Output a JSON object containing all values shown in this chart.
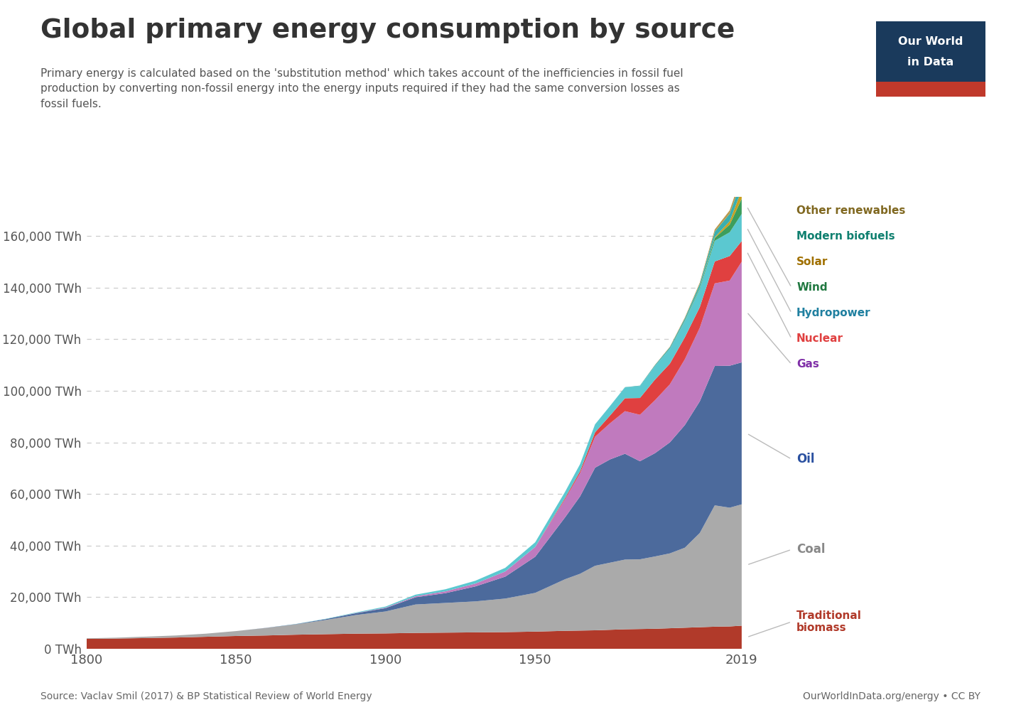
{
  "title": "Global primary energy consumption by source",
  "subtitle": "Primary energy is calculated based on the 'substitution method' which takes account of the inefficiencies in fossil fuel\nproduction by converting non-fossil energy into the energy inputs required if they had the same conversion losses as\nfossil fuels.",
  "source_left": "Source: Vaclav Smil (2017) & BP Statistical Review of World Energy",
  "source_right": "OurWorldInData.org/energy • CC BY",
  "years": [
    1800,
    1810,
    1820,
    1830,
    1840,
    1850,
    1860,
    1870,
    1880,
    1890,
    1900,
    1910,
    1920,
    1930,
    1940,
    1950,
    1960,
    1965,
    1970,
    1975,
    1980,
    1985,
    1990,
    1995,
    2000,
    2005,
    2010,
    2015,
    2019
  ],
  "series": {
    "Traditional biomass": [
      3900,
      4000,
      4200,
      4400,
      4700,
      5000,
      5200,
      5500,
      5700,
      5900,
      6000,
      6200,
      6300,
      6400,
      6500,
      6700,
      7000,
      7100,
      7200,
      7400,
      7600,
      7700,
      7800,
      8000,
      8200,
      8400,
      8600,
      8700,
      9000
    ],
    "Coal": [
      200,
      350,
      550,
      800,
      1200,
      1900,
      2900,
      4000,
      5500,
      7200,
      8500,
      11000,
      11500,
      12000,
      13000,
      15000,
      20000,
      22000,
      25000,
      26000,
      27000,
      27000,
      28000,
      29000,
      31000,
      36500,
      47000,
      46000,
      47000
    ],
    "Oil": [
      0,
      0,
      0,
      0,
      0,
      0,
      50,
      100,
      350,
      700,
      1300,
      2800,
      3800,
      5800,
      8500,
      14000,
      24000,
      30000,
      38000,
      40000,
      41000,
      38000,
      40000,
      43000,
      47500,
      51000,
      54000,
      55000,
      55000
    ],
    "Gas": [
      0,
      0,
      0,
      0,
      0,
      0,
      0,
      0,
      0,
      100,
      200,
      400,
      700,
      1100,
      2000,
      3800,
      7000,
      9000,
      12000,
      14000,
      16500,
      18000,
      20500,
      22500,
      25500,
      28500,
      32000,
      33000,
      39000
    ],
    "Nuclear": [
      0,
      0,
      0,
      0,
      0,
      0,
      0,
      0,
      0,
      0,
      0,
      0,
      0,
      0,
      0,
      0,
      500,
      800,
      1700,
      3000,
      5000,
      6500,
      8000,
      8000,
      8500,
      8000,
      8500,
      9500,
      8000
    ],
    "Hydropower": [
      0,
      0,
      0,
      0,
      0,
      0,
      0,
      50,
      100,
      200,
      400,
      600,
      800,
      1100,
      1400,
      1800,
      2400,
      2700,
      3100,
      3700,
      4200,
      4600,
      5200,
      5700,
      6200,
      7000,
      8000,
      9200,
      10500
    ],
    "Wind": [
      0,
      0,
      0,
      0,
      0,
      0,
      0,
      0,
      0,
      0,
      0,
      0,
      0,
      0,
      0,
      0,
      0,
      0,
      0,
      0,
      0,
      0,
      0,
      50,
      150,
      450,
      1100,
      3000,
      5900
    ],
    "Solar": [
      0,
      0,
      0,
      0,
      0,
      0,
      0,
      0,
      0,
      0,
      0,
      0,
      0,
      0,
      0,
      0,
      0,
      0,
      0,
      0,
      0,
      0,
      0,
      0,
      50,
      100,
      300,
      1300,
      3400
    ],
    "Modern biofuels": [
      0,
      0,
      0,
      0,
      0,
      0,
      0,
      0,
      0,
      0,
      0,
      0,
      0,
      0,
      0,
      0,
      0,
      0,
      0,
      0,
      100,
      200,
      400,
      600,
      900,
      1400,
      2100,
      2900,
      3700
    ],
    "Other renewables": [
      0,
      0,
      0,
      0,
      0,
      0,
      0,
      0,
      0,
      0,
      0,
      0,
      0,
      0,
      0,
      0,
      0,
      0,
      0,
      0,
      0,
      0,
      100,
      200,
      350,
      550,
      900,
      1300,
      2100
    ]
  },
  "colors": {
    "Traditional biomass": "#b13a2a",
    "Coal": "#aaaaaa",
    "Oil": "#4c6a9c",
    "Gas": "#c07abe",
    "Nuclear": "#e04040",
    "Hydropower": "#5bc8d0",
    "Wind": "#3c9e5c",
    "Solar": "#c8a020",
    "Modern biofuels": "#3aafaf",
    "Other renewables": "#b89a50"
  },
  "label_colors": {
    "Traditional biomass": "#b13a2a",
    "Coal": "#888888",
    "Oil": "#2a50a0",
    "Gas": "#8030a8",
    "Nuclear": "#e04040",
    "Hydropower": "#2080a0",
    "Wind": "#207840",
    "Solar": "#a07000",
    "Modern biofuels": "#108070",
    "Other renewables": "#806820"
  },
  "ylim": [
    0,
    175000
  ],
  "yticks": [
    0,
    20000,
    40000,
    60000,
    80000,
    100000,
    120000,
    140000,
    160000
  ],
  "xticks": [
    1800,
    1850,
    1900,
    1950,
    2019
  ],
  "background_color": "#ffffff",
  "owid_bg": "#1a3a5c",
  "owid_accent": "#c0392b",
  "grid_color": "#cccccc",
  "tick_color": "#555555"
}
